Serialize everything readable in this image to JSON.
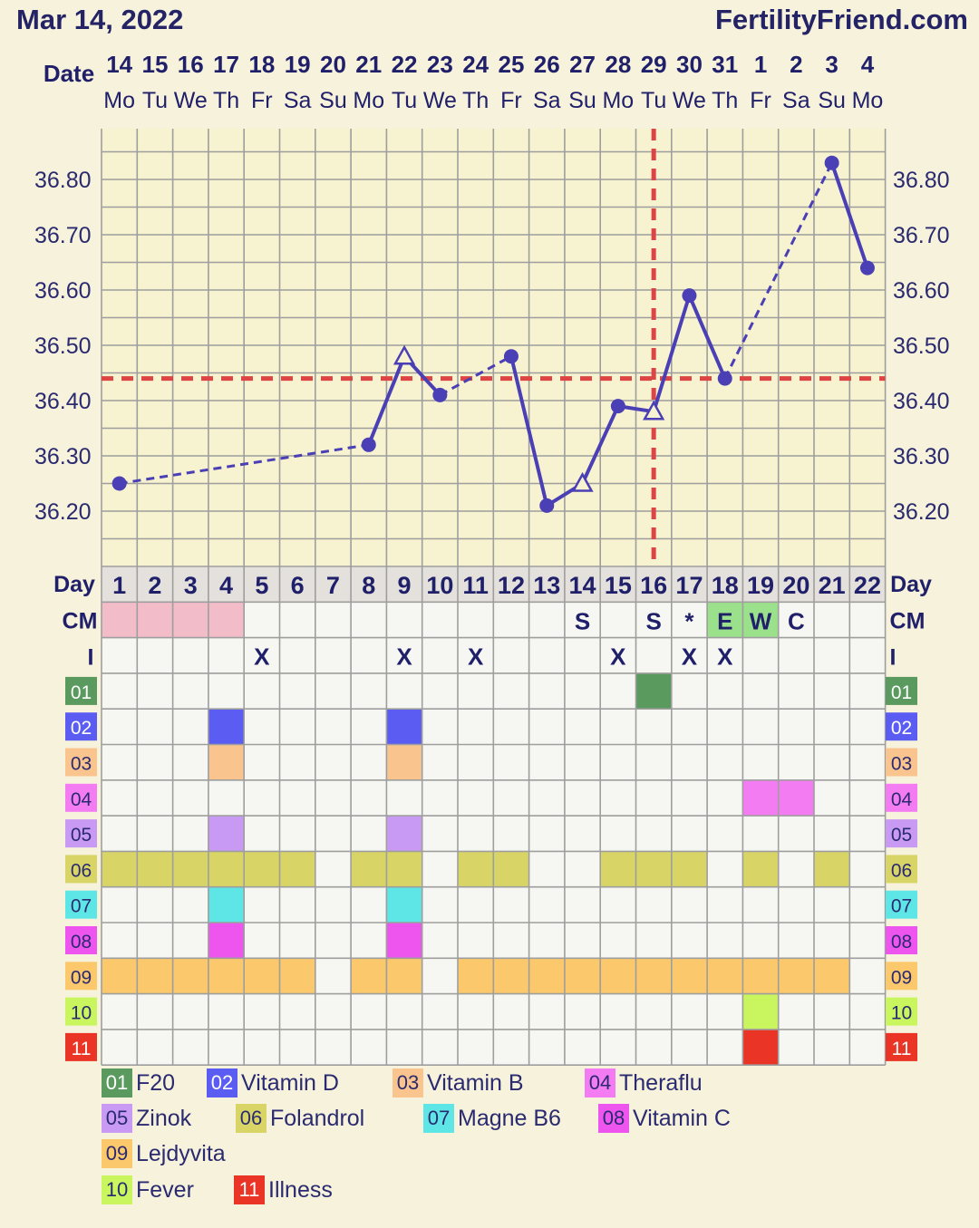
{
  "header": {
    "date": "Mar 14, 2022",
    "site": "FertilityFriend.com"
  },
  "labels": {
    "date": "Date",
    "day": "Day",
    "cm": "CM",
    "intercourse": "I"
  },
  "chart_data": {
    "type": "line",
    "title": "",
    "dates": [
      "14",
      "15",
      "16",
      "17",
      "18",
      "19",
      "20",
      "21",
      "22",
      "23",
      "24",
      "25",
      "26",
      "27",
      "28",
      "29",
      "30",
      "31",
      "1",
      "2",
      "3",
      "4"
    ],
    "weekdays": [
      "Mo",
      "Tu",
      "We",
      "Th",
      "Fr",
      "Sa",
      "Su",
      "Mo",
      "Tu",
      "We",
      "Th",
      "Fr",
      "Sa",
      "Su",
      "Mo",
      "Tu",
      "We",
      "Th",
      "Fr",
      "Sa",
      "Su",
      "Mo"
    ],
    "cycle_days": [
      "1",
      "2",
      "3",
      "4",
      "5",
      "6",
      "7",
      "8",
      "9",
      "10",
      "11",
      "12",
      "13",
      "14",
      "15",
      "16",
      "17",
      "18",
      "19",
      "20",
      "21",
      "22"
    ],
    "yticks": [
      "36.20",
      "36.30",
      "36.40",
      "36.50",
      "36.60",
      "36.70",
      "36.80"
    ],
    "ylim": [
      36.1,
      36.9
    ],
    "temperatures": [
      {
        "day": 1,
        "temp": 36.25,
        "marker": "dot"
      },
      {
        "day": 8,
        "temp": 36.32,
        "marker": "dot"
      },
      {
        "day": 9,
        "temp": 36.48,
        "marker": "triangle"
      },
      {
        "day": 10,
        "temp": 36.41,
        "marker": "dot"
      },
      {
        "day": 12,
        "temp": 36.48,
        "marker": "dot"
      },
      {
        "day": 13,
        "temp": 36.21,
        "marker": "dot"
      },
      {
        "day": 14,
        "temp": 36.25,
        "marker": "triangle"
      },
      {
        "day": 15,
        "temp": 36.39,
        "marker": "dot"
      },
      {
        "day": 16,
        "temp": 36.38,
        "marker": "triangle"
      },
      {
        "day": 17,
        "temp": 36.59,
        "marker": "dot"
      },
      {
        "day": 18,
        "temp": 36.44,
        "marker": "dot"
      },
      {
        "day": 21,
        "temp": 36.83,
        "marker": "dot"
      },
      {
        "day": 22,
        "temp": 36.64,
        "marker": "dot"
      }
    ],
    "coverline": 36.44,
    "ovulation_day": 16,
    "menstruation_days": [
      1,
      2,
      3,
      4
    ],
    "cervical_mucus": [
      {
        "day": 14,
        "code": "S"
      },
      {
        "day": 16,
        "code": "S"
      },
      {
        "day": 17,
        "code": "*"
      },
      {
        "day": 18,
        "code": "E"
      },
      {
        "day": 19,
        "code": "W"
      },
      {
        "day": 20,
        "code": "C"
      }
    ],
    "intercourse_days": [
      5,
      9,
      11,
      15,
      17,
      18
    ],
    "intercourse_mark": "X",
    "rows": [
      {
        "code": "01",
        "name": "F20",
        "color": "#5a9a5e",
        "days": [
          16
        ]
      },
      {
        "code": "02",
        "name": "Vitamin D",
        "color": "#5b5df2",
        "days": [
          4,
          9
        ]
      },
      {
        "code": "03",
        "name": "Vitamin B",
        "color": "#f9c48e",
        "days": [
          4,
          9
        ]
      },
      {
        "code": "04",
        "name": "Theraflu",
        "color": "#f47cf2",
        "days": [
          19,
          20
        ]
      },
      {
        "code": "05",
        "name": "Zinok",
        "color": "#c99af4",
        "days": [
          4,
          9
        ]
      },
      {
        "code": "06",
        "name": "Folandrol",
        "color": "#d8d566",
        "days": [
          1,
          2,
          3,
          4,
          5,
          6,
          8,
          9,
          11,
          12,
          15,
          16,
          17,
          19,
          21
        ]
      },
      {
        "code": "07",
        "name": "Magne B6",
        "color": "#5ee6e6",
        "days": [
          4,
          9
        ]
      },
      {
        "code": "08",
        "name": "Vitamin C",
        "color": "#ee55ee",
        "days": [
          4,
          9
        ]
      },
      {
        "code": "09",
        "name": "Lejdyvita",
        "color": "#fbc86b",
        "days": [
          1,
          2,
          3,
          4,
          5,
          6,
          8,
          9,
          11,
          12,
          13,
          14,
          15,
          16,
          17,
          18,
          19,
          20,
          21
        ]
      },
      {
        "code": "10",
        "name": "Fever",
        "color": "#c9f55e",
        "days": [
          19
        ]
      },
      {
        "code": "11",
        "name": "Illness",
        "color": "#ea3526",
        "days": [
          19
        ]
      }
    ]
  }
}
